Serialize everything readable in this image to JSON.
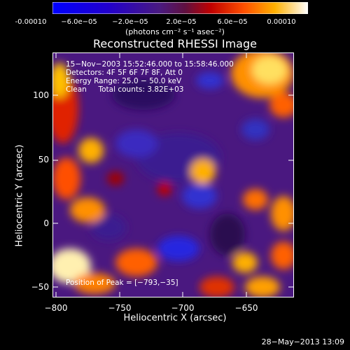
{
  "title": "Reconstructed RHESSI Image",
  "colorbar": {
    "units": "(photons cm⁻² s⁻¹ asec⁻²)",
    "ticks": [
      "-0.00010",
      "−6.0e−05",
      "−2.0e−05",
      "2.0e−05",
      "6.0e−05",
      "0.00010"
    ]
  },
  "info": {
    "time": "15−Nov−2003 15:52:46.000 to 15:58:46.000",
    "detectors": "Detectors: 4F 5F 6F 7F 8F, Att 0",
    "energy": "Energy Range: 25.0 − 50.0 keV",
    "clean": "Clean     Total counts: 3.82E+03",
    "peak": "Position of Peak = [−793,−35]"
  },
  "axes": {
    "xlabel": "Heliocentric X (arcsec)",
    "ylabel": "Heliocentric Y (arcsec)",
    "xticks": [
      "−800",
      "−750",
      "−700",
      "−650"
    ],
    "yticks": [
      "100",
      "50",
      "0",
      "−50"
    ]
  },
  "footer": "28−May−2013 13:09",
  "colors": {
    "background": "#000000",
    "low": "#0000ff",
    "high": "#ffffff"
  }
}
